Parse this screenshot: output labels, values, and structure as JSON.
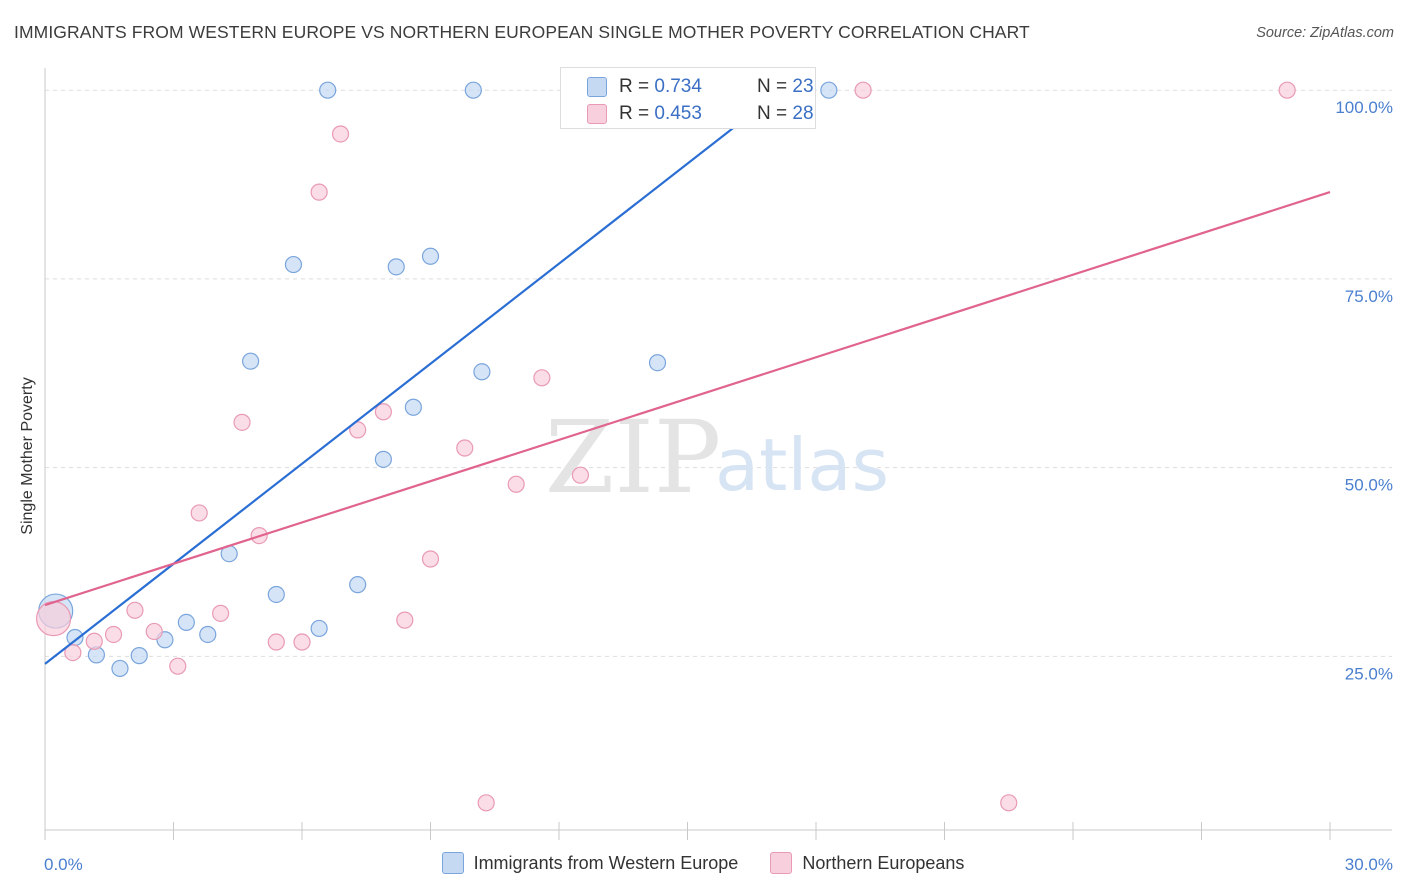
{
  "title": "IMMIGRANTS FROM WESTERN EUROPE VS NORTHERN EUROPEAN SINGLE MOTHER POVERTY CORRELATION CHART",
  "source": "Source: ZipAtlas.com",
  "watermark": {
    "zip": "ZIP",
    "atlas": "atlas"
  },
  "stats": [
    {
      "r_label": "R = ",
      "r_value": "0.734",
      "n_label": "N = ",
      "n_value": "23"
    },
    {
      "r_label": "R = ",
      "r_value": "0.453",
      "n_label": "N = ",
      "n_value": "28"
    }
  ],
  "colors": {
    "blue_fill": "#c5d9f3",
    "blue_stroke": "#7aa5dc",
    "blue_line": "#2a6ed4",
    "pink_fill": "#f8cfdc",
    "pink_stroke": "#e99ab4",
    "pink_line": "#e0648e",
    "tick_text": "#4a7fcf",
    "grid": "#dddddd"
  },
  "chart_data": {
    "type": "scatter",
    "title": "IMMIGRANTS FROM WESTERN EUROPE VS NORTHERN EUROPEAN SINGLE MOTHER POVERTY CORRELATION CHART",
    "xlabel": "",
    "ylabel": "Single Mother Poverty",
    "xlim": [
      0,
      30
    ],
    "ylim": [
      2,
      104
    ],
    "x_tick_labels": [
      "0.0%",
      "30.0%"
    ],
    "y_tick_labels": [
      "25.0%",
      "50.0%",
      "75.0%",
      "100.0%"
    ],
    "y_ticks": [
      25,
      50,
      75,
      100
    ],
    "x_minor_ticks": [
      0,
      3,
      6,
      9,
      12,
      15,
      18,
      21,
      24,
      27,
      30
    ],
    "grid": true,
    "legend_position": "bottom",
    "series": [
      {
        "name": "Immigrants from Western Europe",
        "color": "blue",
        "trend": {
          "x": [
            0,
            17.2
          ],
          "y": [
            24.0,
            100.0
          ]
        },
        "points": [
          {
            "x": 0.25,
            "y": 31.0,
            "size": "large"
          },
          {
            "x": 0.7,
            "y": 27.5
          },
          {
            "x": 1.2,
            "y": 25.2
          },
          {
            "x": 1.75,
            "y": 23.4
          },
          {
            "x": 2.2,
            "y": 25.1
          },
          {
            "x": 2.8,
            "y": 27.2
          },
          {
            "x": 3.3,
            "y": 29.5
          },
          {
            "x": 3.8,
            "y": 27.9
          },
          {
            "x": 4.3,
            "y": 38.6
          },
          {
            "x": 4.8,
            "y": 64.1
          },
          {
            "x": 5.4,
            "y": 33.2
          },
          {
            "x": 5.8,
            "y": 76.9
          },
          {
            "x": 6.4,
            "y": 28.7
          },
          {
            "x": 6.6,
            "y": 100.0
          },
          {
            "x": 7.3,
            "y": 34.5
          },
          {
            "x": 7.9,
            "y": 51.1
          },
          {
            "x": 8.2,
            "y": 76.6
          },
          {
            "x": 8.6,
            "y": 58.0
          },
          {
            "x": 9.0,
            "y": 78.0
          },
          {
            "x": 10.0,
            "y": 100.0
          },
          {
            "x": 10.2,
            "y": 62.7
          },
          {
            "x": 14.3,
            "y": 63.9
          },
          {
            "x": 18.3,
            "y": 100.0
          }
        ]
      },
      {
        "name": "Northern Europeans",
        "color": "pink",
        "trend": {
          "x": [
            0,
            30
          ],
          "y": [
            31.8,
            86.5
          ]
        },
        "points": [
          {
            "x": 0.2,
            "y": 30.0,
            "size": "large"
          },
          {
            "x": 0.65,
            "y": 25.5
          },
          {
            "x": 1.15,
            "y": 27.0
          },
          {
            "x": 1.6,
            "y": 27.9
          },
          {
            "x": 2.1,
            "y": 31.1
          },
          {
            "x": 2.55,
            "y": 28.3
          },
          {
            "x": 3.1,
            "y": 23.7
          },
          {
            "x": 3.6,
            "y": 44.0
          },
          {
            "x": 4.1,
            "y": 30.7
          },
          {
            "x": 4.6,
            "y": 56.0
          },
          {
            "x": 5.0,
            "y": 41.0
          },
          {
            "x": 5.4,
            "y": 26.9
          },
          {
            "x": 6.0,
            "y": 26.9
          },
          {
            "x": 6.4,
            "y": 86.5
          },
          {
            "x": 6.9,
            "y": 94.2
          },
          {
            "x": 7.3,
            "y": 55.0
          },
          {
            "x": 7.9,
            "y": 57.4
          },
          {
            "x": 8.4,
            "y": 29.8
          },
          {
            "x": 9.0,
            "y": 37.9
          },
          {
            "x": 9.8,
            "y": 52.6
          },
          {
            "x": 10.3,
            "y": 5.6
          },
          {
            "x": 11.0,
            "y": 47.8
          },
          {
            "x": 11.6,
            "y": 61.9
          },
          {
            "x": 12.5,
            "y": 49.0
          },
          {
            "x": 13.5,
            "y": 100.0
          },
          {
            "x": 19.1,
            "y": 100.0
          },
          {
            "x": 22.5,
            "y": 5.6
          },
          {
            "x": 29.0,
            "y": 100.0
          }
        ]
      }
    ]
  }
}
